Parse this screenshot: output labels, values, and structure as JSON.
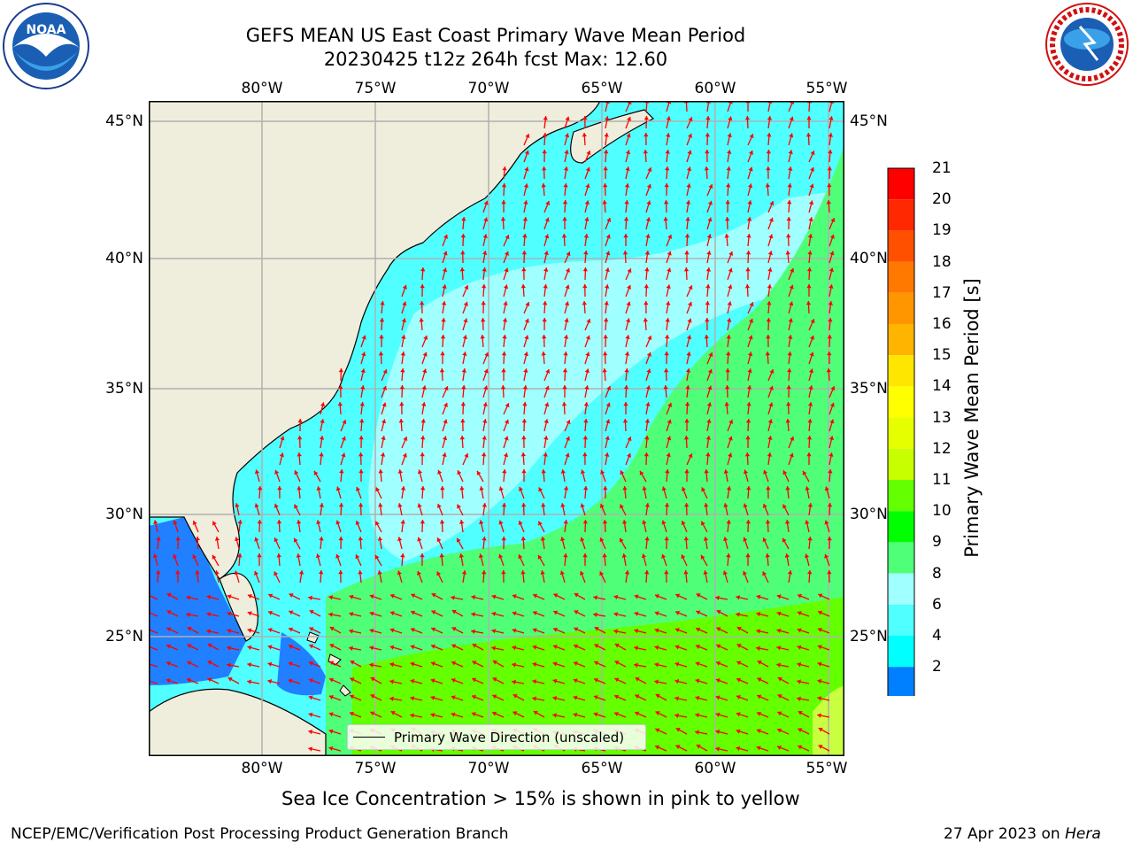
{
  "title_line1": "GEFS MEAN US East Coast Primary Wave Mean Period",
  "title_line2": "20230425 t12z 264h fcst   Max: 12.60",
  "lon_labels": [
    "80°W",
    "75°W",
    "70°W",
    "65°W",
    "60°W",
    "55°W"
  ],
  "lat_labels": [
    "45°N",
    "40°N",
    "35°N",
    "30°N",
    "25°N"
  ],
  "colorbar": {
    "label": "Primary Wave Mean Period [s]",
    "ticks": [
      "21",
      "20",
      "19",
      "18",
      "17",
      "16",
      "15",
      "14",
      "13",
      "12",
      "11",
      "10",
      "9",
      "8",
      "6",
      "4",
      "2"
    ],
    "colors": [
      "#ff0000",
      "#ff2800",
      "#ff5000",
      "#ff7800",
      "#ff9600",
      "#ffb400",
      "#ffe600",
      "#ffff00",
      "#e6ff00",
      "#c8ff00",
      "#64ff00",
      "#00ff00",
      "#50ff78",
      "#a0ffff",
      "#50ffff",
      "#00ffff",
      "#0080ff"
    ],
    "extend_color": "#0000ff"
  },
  "map_colors": {
    "land": "#efeddc",
    "ocean_cyan": "#50ffff",
    "ocean_lightcyan": "#a0ffff",
    "ocean_green": "#50ff78",
    "ocean_brightgreen": "#64ff00",
    "ocean_yellowgreen": "#c8ff40",
    "ocean_blue": "#2080ff",
    "arrow": "#ff0000",
    "grid": "#b0b0b0"
  },
  "legend_label": "Primary Wave Direction (unscaled)",
  "subtitle": "Sea Ice Concentration > 15% is shown in pink to yellow",
  "footer_left": "NCEP/EMC/Verification Post Processing Product Generation Branch",
  "footer_date": "27 Apr 2023 on ",
  "footer_host": "Hera",
  "logos": {
    "noaa": "NOAA",
    "noaa_ring": "NATIONAL OCEANIC AND ATMOSPHERIC ADMINISTRATION · U.S. DEPARTMENT OF COMMERCE",
    "nws_ring": "NATIONAL WEATHER SERVICE"
  }
}
